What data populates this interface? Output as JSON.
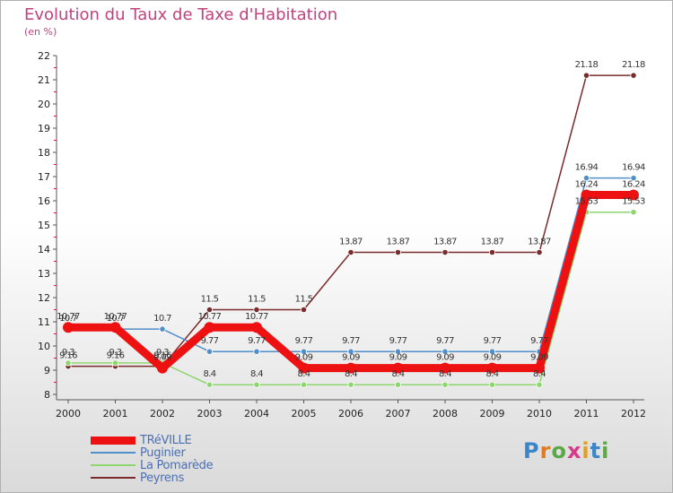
{
  "header": {
    "title": "Evolution du Taux de Taxe d'Habitation",
    "subtitle": "(en %)"
  },
  "brand": {
    "text": "Proxiti",
    "letters": [
      "P",
      "r",
      "o",
      "x",
      "i",
      "t",
      "i"
    ],
    "colors": [
      "#3a86c8",
      "#e07b1f",
      "#5aa846",
      "#d63a8b",
      "#e0a11f",
      "#3a86c8",
      "#5aa846"
    ]
  },
  "chart_data": {
    "type": "line",
    "title": "Evolution du Taux de Taxe d'Habitation",
    "subtitle": "(en %)",
    "xlabel": "",
    "ylabel": "",
    "ylim": [
      8,
      22
    ],
    "yticks": [
      "8",
      "9",
      "10",
      "11",
      "12",
      "13",
      "14",
      "15",
      "16",
      "17",
      "18",
      "19",
      "20",
      "21",
      "22"
    ],
    "x": [
      "2000",
      "2001",
      "2002",
      "2003",
      "2004",
      "2005",
      "2006",
      "2007",
      "2008",
      "2009",
      "2010",
      "2011",
      "2012"
    ],
    "series": [
      {
        "name": "TRéVILLE",
        "color": "#ee1111",
        "values": [
          10.77,
          10.77,
          9.09,
          10.77,
          10.77,
          9.09,
          9.09,
          9.09,
          9.09,
          9.09,
          9.09,
          16.24,
          16.24
        ],
        "labels": [
          "10.77",
          "10.77",
          "9.09",
          "10.77",
          "10.77",
          "9.09",
          "9.09",
          "9.09",
          "9.09",
          "9.09",
          "9.09",
          "16.24",
          "16.24"
        ]
      },
      {
        "name": "Puginier",
        "color": "#4f8fcb",
        "values": [
          10.7,
          10.7,
          10.7,
          9.77,
          9.77,
          9.77,
          9.77,
          9.77,
          9.77,
          9.77,
          9.77,
          16.94,
          16.94
        ],
        "labels": [
          "10.7",
          "10.7",
          "10.7",
          "9.77",
          "9.77",
          "9.77",
          "9.77",
          "9.77",
          "9.77",
          "9.77",
          "9.77",
          "16.94",
          "16.94"
        ]
      },
      {
        "name": "La Pomarède",
        "color": "#8ed66e",
        "values": [
          9.3,
          9.3,
          9.3,
          8.4,
          8.4,
          8.4,
          8.4,
          8.4,
          8.4,
          8.4,
          8.4,
          15.53,
          15.53
        ],
        "labels": [
          "9.3",
          "9.3",
          "9.3",
          "8.4",
          "8.4",
          "8.4",
          "8.4",
          "8.4",
          "8.4",
          "8.4",
          "8.4",
          "15.53",
          "15.53"
        ]
      },
      {
        "name": "Peyrens",
        "color": "#7a2b2b",
        "values": [
          9.16,
          9.16,
          9.16,
          11.5,
          11.5,
          11.5,
          13.87,
          13.87,
          13.87,
          13.87,
          13.87,
          21.18,
          21.18
        ],
        "labels": [
          "9.16",
          "9.16",
          "9.16",
          "11.5",
          "11.5",
          "11.5",
          "13.87",
          "13.87",
          "13.87",
          "13.87",
          "13.87",
          "21.18",
          "21.18"
        ]
      }
    ],
    "grid": false,
    "legend_position": "bottom-left"
  }
}
